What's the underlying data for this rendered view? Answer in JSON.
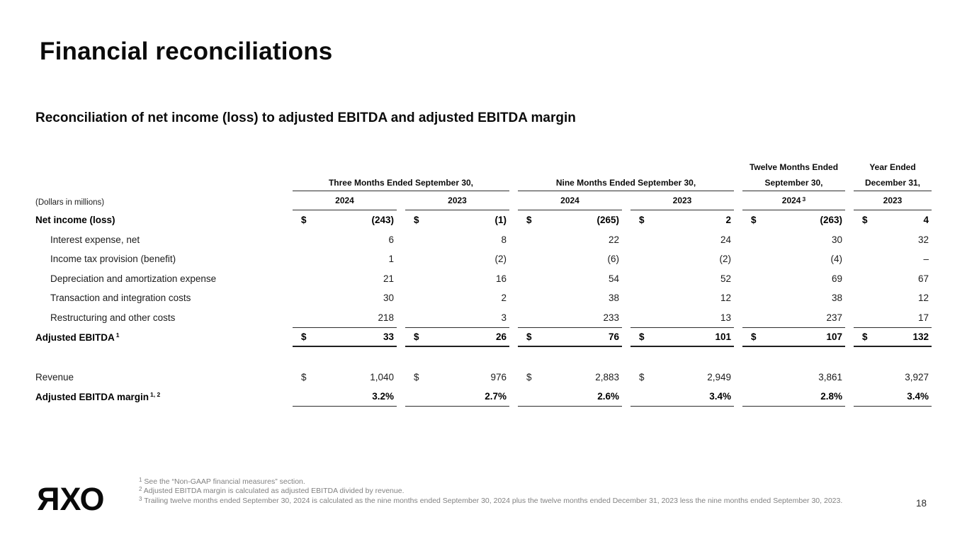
{
  "slide": {
    "title": "Financial reconciliations",
    "subtitle": "Reconciliation of net income (loss) to adjusted EBITDA and adjusted EBITDA margin",
    "page_number": "18",
    "logo": {
      "letter_r": "R",
      "letter_x": "X",
      "letter_o": "O"
    }
  },
  "table": {
    "units_note": "(Dollars in millions)",
    "groups": [
      {
        "line1": "Three Months Ended September 30,",
        "line2": ""
      },
      {
        "line1": "Nine Months Ended September 30,",
        "line2": ""
      },
      {
        "line1": "Twelve Months Ended",
        "line2": "September 30,"
      },
      {
        "line1": "Year Ended",
        "line2": "December 31,"
      }
    ],
    "years": [
      {
        "label": "2024",
        "sup": ""
      },
      {
        "label": "2023",
        "sup": ""
      },
      {
        "label": "2024",
        "sup": ""
      },
      {
        "label": "2023",
        "sup": ""
      },
      {
        "label": "2024",
        "sup": "3"
      },
      {
        "label": "2023",
        "sup": ""
      }
    ],
    "rows": [
      {
        "label": "Net income (loss)",
        "sup": "",
        "dollars": [
          "$",
          "$",
          "$",
          "$",
          "$",
          "$"
        ],
        "values": [
          "(243)",
          "(1)",
          "(265)",
          "2",
          "(263)",
          "4"
        ]
      },
      {
        "label": "Interest expense, net",
        "sup": "",
        "dollars": [
          "",
          "",
          "",
          "",
          "",
          ""
        ],
        "values": [
          "6",
          "8",
          "22",
          "24",
          "30",
          "32"
        ]
      },
      {
        "label": "Income tax provision (benefit)",
        "sup": "",
        "dollars": [
          "",
          "",
          "",
          "",
          "",
          ""
        ],
        "values": [
          "1",
          "(2)",
          "(6)",
          "(2)",
          "(4)",
          "–"
        ]
      },
      {
        "label": "Depreciation and amortization expense",
        "sup": "",
        "dollars": [
          "",
          "",
          "",
          "",
          "",
          ""
        ],
        "values": [
          "21",
          "16",
          "54",
          "52",
          "69",
          "67"
        ]
      },
      {
        "label": "Transaction and integration costs",
        "sup": "",
        "dollars": [
          "",
          "",
          "",
          "",
          "",
          ""
        ],
        "values": [
          "30",
          "2",
          "38",
          "12",
          "38",
          "12"
        ]
      },
      {
        "label": "Restructuring and other costs",
        "sup": "",
        "dollars": [
          "",
          "",
          "",
          "",
          "",
          ""
        ],
        "values": [
          "218",
          "3",
          "233",
          "13",
          "237",
          "17"
        ]
      },
      {
        "label": "Adjusted EBITDA",
        "sup": "1",
        "dollars": [
          "$",
          "$",
          "$",
          "$",
          "$",
          "$"
        ],
        "values": [
          "33",
          "26",
          "76",
          "101",
          "107",
          "132"
        ]
      },
      {
        "label": "Revenue",
        "sup": "",
        "dollars": [
          "$",
          "$",
          "$",
          "$",
          "",
          ""
        ],
        "values": [
          "1,040",
          "976",
          "2,883",
          "2,949",
          "3,861",
          "3,927"
        ]
      },
      {
        "label": "Adjusted EBITDA margin",
        "sup": "1, 2",
        "dollars": [
          "",
          "",
          "",
          "",
          "",
          ""
        ],
        "values": [
          "3.2%",
          "2.7%",
          "2.6%",
          "3.4%",
          "2.8%",
          "3.4%"
        ]
      }
    ]
  },
  "footnotes": [
    {
      "sup": "1",
      "text": "See the “Non-GAAP financial measures” section."
    },
    {
      "sup": "2",
      "text": "Adjusted EBITDA margin is calculated as adjusted EBITDA divided by revenue."
    },
    {
      "sup": "3",
      "text": "Trailing twelve months ended September 30, 2024 is calculated as the nine months ended September 30, 2024 plus the twelve months ended December 31, 2023 less the nine months ended September 30, 2023."
    }
  ]
}
